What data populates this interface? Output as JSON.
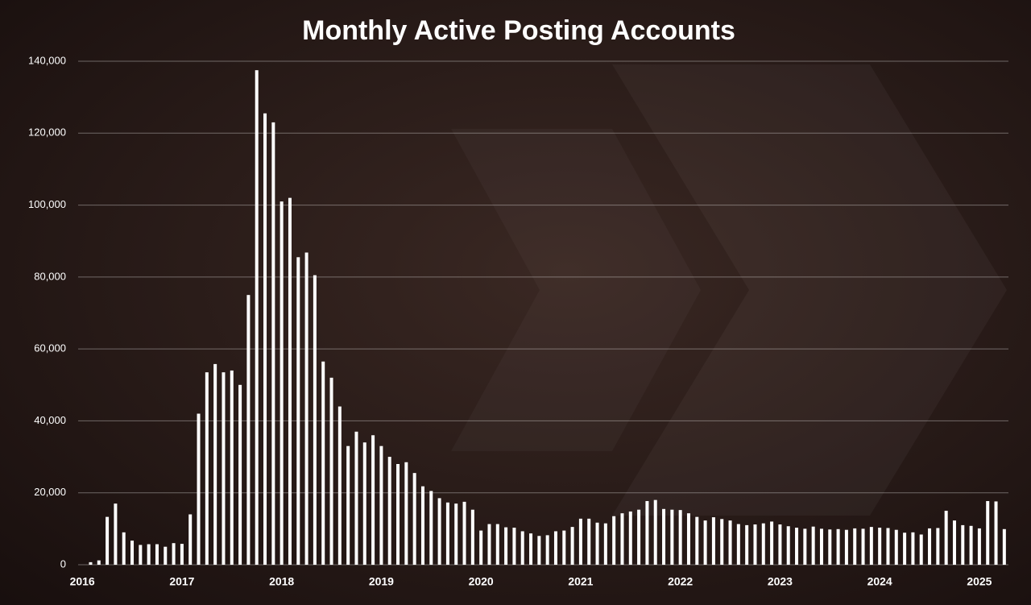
{
  "chart_data": {
    "type": "bar",
    "title": "Monthly Active Posting Accounts",
    "categories": [
      "2016",
      null,
      null,
      null,
      null,
      null,
      null,
      null,
      null,
      null,
      null,
      null,
      "2017",
      null,
      null,
      null,
      null,
      null,
      null,
      null,
      null,
      null,
      null,
      null,
      "2018",
      null,
      null,
      null,
      null,
      null,
      null,
      null,
      null,
      null,
      null,
      null,
      "2019",
      null,
      null,
      null,
      null,
      null,
      null,
      null,
      null,
      null,
      null,
      null,
      "2020",
      null,
      null,
      null,
      null,
      null,
      null,
      null,
      null,
      null,
      null,
      null,
      "2021",
      null,
      null,
      null,
      null,
      null,
      null,
      null,
      null,
      null,
      null,
      null,
      "2022",
      null,
      null,
      null,
      null,
      null,
      null,
      null,
      null,
      null,
      null,
      null,
      "2023",
      null,
      null,
      null,
      null,
      null,
      null,
      null,
      null,
      null,
      null,
      null,
      "2024",
      null,
      null,
      null,
      null,
      null,
      null,
      null,
      null,
      null,
      null,
      null,
      "2025",
      null,
      null,
      null
    ],
    "values": [
      0,
      700,
      1200,
      13300,
      17000,
      9000,
      6700,
      5500,
      5700,
      5700,
      5000,
      6000,
      5800,
      14000,
      42000,
      53500,
      55800,
      53500,
      54000,
      50000,
      75000,
      137500,
      125500,
      123000,
      101000,
      102000,
      85500,
      86800,
      80500,
      56500,
      52000,
      44000,
      33000,
      37000,
      34000,
      36000,
      33000,
      30000,
      28000,
      28500,
      25500,
      21800,
      20500,
      18500,
      17300,
      17000,
      17500,
      15300,
      9500,
      11300,
      11300,
      10400,
      10300,
      9300,
      8700,
      8000,
      8200,
      9300,
      9500,
      10500,
      12800,
      12800,
      11700,
      11500,
      13500,
      14300,
      14800,
      15300,
      17700,
      18000,
      15500,
      15300,
      15200,
      14300,
      13300,
      12300,
      13200,
      12700,
      12300,
      11300,
      11000,
      11200,
      11500,
      12000,
      11200,
      10700,
      10300,
      10000,
      10600,
      10000,
      9800,
      9900,
      9700,
      10100,
      10000,
      10500,
      10300,
      10200,
      9700,
      8900,
      9000,
      8400,
      10100,
      10200,
      15000,
      12300,
      11000,
      10800,
      10100,
      17700,
      17600,
      9900
    ],
    "color": "#ffffff",
    "ylim": [
      0,
      140000
    ],
    "yticks": [
      0,
      {
        "value": 20000,
        "label": "20,000"
      },
      {
        "value": 40000,
        "label": "40,000"
      },
      {
        "value": 60000,
        "label": "60,000"
      },
      {
        "value": 80000,
        "label": "80,000"
      },
      {
        "value": 100000,
        "label": "100,000"
      },
      {
        "value": 120000,
        "label": "120,000"
      },
      {
        "value": 140000,
        "label": "140,000"
      }
    ],
    "grid": true
  }
}
